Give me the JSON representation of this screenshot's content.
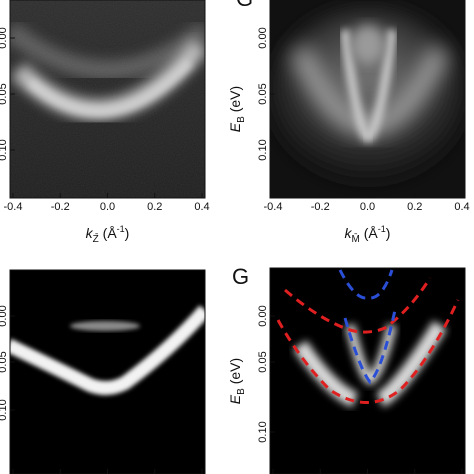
{
  "figure": {
    "panels": [
      {
        "id": "top-left",
        "letter": "",
        "type": "heatmap",
        "description_visible": false,
        "x_ticks": [
          "-0.4",
          "-0.2",
          "0.0",
          "0.2",
          "0.4"
        ],
        "x_label_main": "k",
        "x_label_sub": "Z̄",
        "x_label_units": " (Å",
        "x_label_units_sup": "-1",
        "x_label_close": ")",
        "y_ticks": [
          "0.00",
          "0.05",
          "0.10"
        ],
        "y_label_main": "",
        "y_label_sub": "",
        "y_label_units": ""
      },
      {
        "id": "top-right",
        "letter": "",
        "type": "heatmap",
        "x_ticks": [
          "-0.4",
          "-0.2",
          "0.0",
          "0.2",
          "0.4"
        ],
        "x_label_main": "k",
        "x_label_sub": "M̄",
        "x_label_units": " (Å",
        "x_label_units_sup": "-1",
        "x_label_close": ")",
        "y_ticks": [
          "0.00",
          "0.05",
          "0.10"
        ],
        "y_label_main": "E",
        "y_label_sub": "B",
        "y_label_units": " (eV)"
      },
      {
        "id": "bottom-left",
        "letter": "",
        "type": "heatmap",
        "x_ticks": [],
        "y_ticks": [
          "0.00",
          "0.05",
          "0.10"
        ],
        "y_label_main": "",
        "y_label_sub": "",
        "y_label_units": ""
      },
      {
        "id": "bottom-right",
        "letter": "G",
        "type": "heatmap",
        "x_ticks": [],
        "y_ticks": [
          "0.00",
          "0.05",
          "0.10"
        ],
        "y_label_main": "E",
        "y_label_sub": "B",
        "y_label_units": " (eV)",
        "overlays": [
          {
            "name": "red-dashed-outer",
            "color": "#e02020"
          },
          {
            "name": "red-dashed-inner",
            "color": "#e02020"
          },
          {
            "name": "blue-dashed-inner",
            "color": "#2a4fd6"
          },
          {
            "name": "blue-dashed-upper",
            "color": "#2a4fd6"
          }
        ]
      }
    ],
    "top_right_letter_fragment": "G"
  }
}
